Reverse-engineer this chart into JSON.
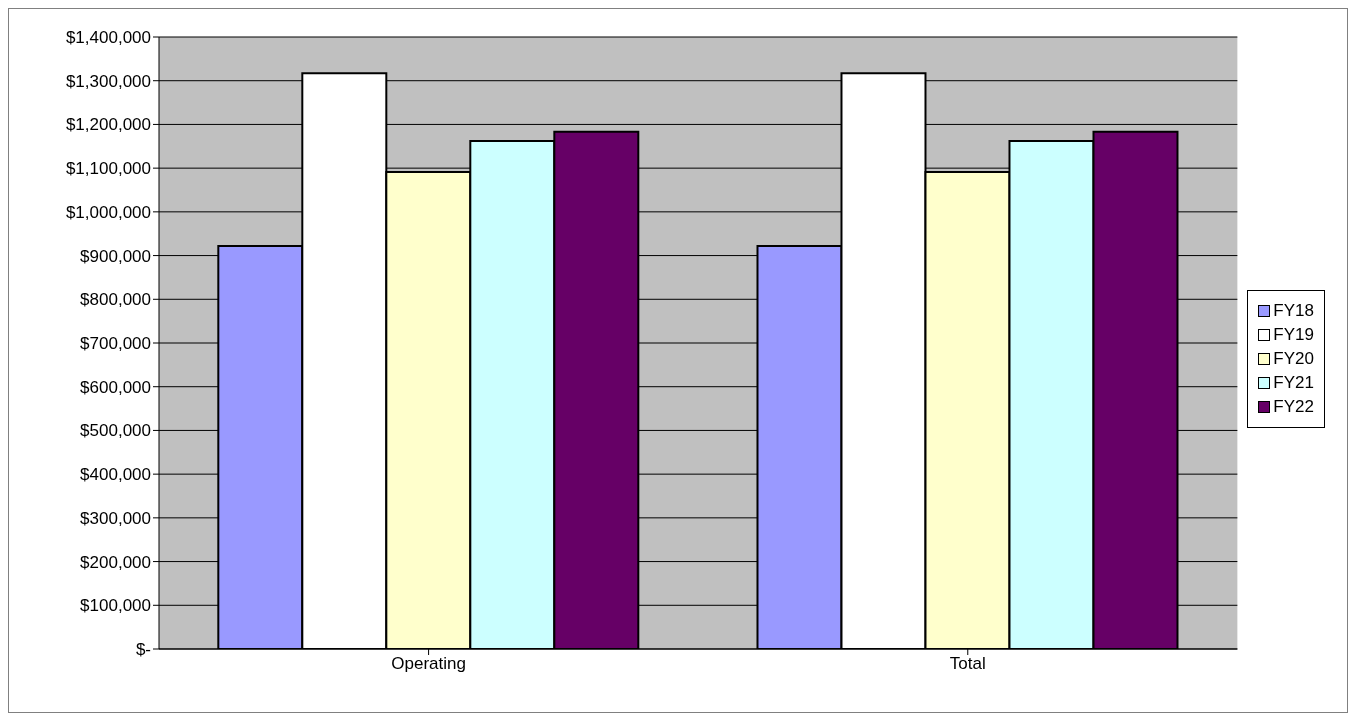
{
  "chart_data": {
    "type": "bar",
    "categories": [
      "Operating",
      "Total"
    ],
    "series": [
      {
        "name": "FY18",
        "color": "#9999ff",
        "values": [
          922000,
          922000
        ]
      },
      {
        "name": "FY19",
        "color": "#ffffff",
        "values": [
          1317000,
          1317000
        ]
      },
      {
        "name": "FY20",
        "color": "#ffffcc",
        "values": [
          1091000,
          1091000
        ]
      },
      {
        "name": "FY21",
        "color": "#ccffff",
        "values": [
          1162000,
          1162000
        ]
      },
      {
        "name": "FY22",
        "color": "#660066",
        "values": [
          1183000,
          1183000
        ]
      }
    ],
    "ylim": [
      0,
      1400000
    ],
    "yticks": [
      {
        "value": 0,
        "label": "$-"
      },
      {
        "value": 100000,
        "label": "$100,000"
      },
      {
        "value": 200000,
        "label": "$200,000"
      },
      {
        "value": 300000,
        "label": "$300,000"
      },
      {
        "value": 400000,
        "label": "$400,000"
      },
      {
        "value": 500000,
        "label": "$500,000"
      },
      {
        "value": 600000,
        "label": "$600,000"
      },
      {
        "value": 700000,
        "label": "$700,000"
      },
      {
        "value": 800000,
        "label": "$800,000"
      },
      {
        "value": 900000,
        "label": "$900,000"
      },
      {
        "value": 1000000,
        "label": "$1,000,000"
      },
      {
        "value": 1100000,
        "label": "$1,100,000"
      },
      {
        "value": 1200000,
        "label": "$1,200,000"
      },
      {
        "value": 1300000,
        "label": "$1,300,000"
      },
      {
        "value": 1400000,
        "label": "$1,400,000"
      }
    ],
    "grid": "y",
    "legend": "right"
  }
}
